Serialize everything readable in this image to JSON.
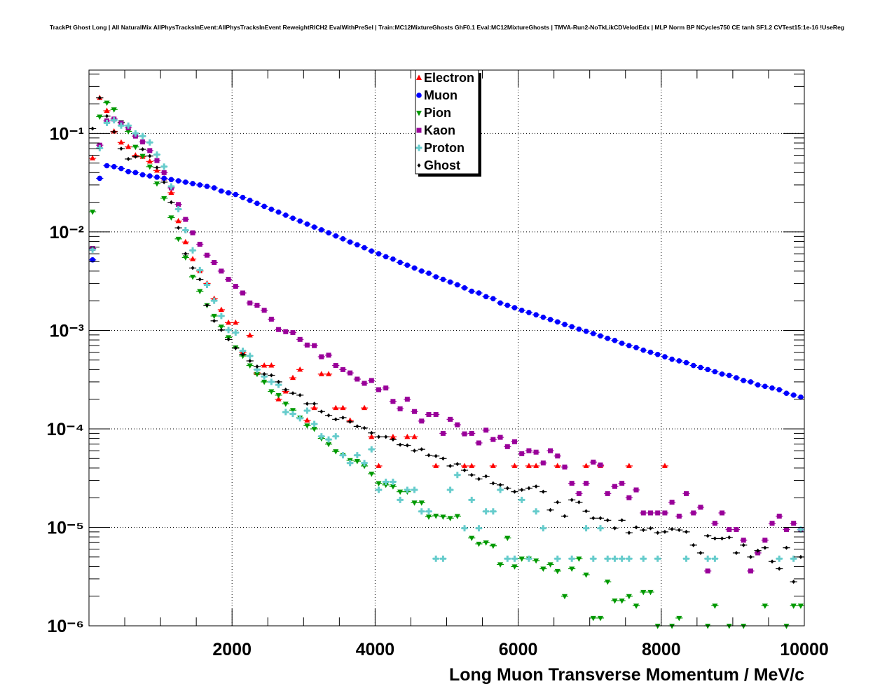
{
  "chart_data": {
    "type": "scatter",
    "title": "TrackPt Ghost Long | All NaturalMix AllPhysTracksInEvent:AllPhysTracksInEvent ReweightRICH2 EvalWithPreSel | Train:MC12MixtureGhosts GhF0.1 Eval:MC12MixtureGhosts | TMVA-Run2-NoTkLikCDVelodEdx | MLP Norm BP NCycles750 CE tanh SF1.2 CVTest15:1e-16 !UseReg",
    "xlabel": "Long Muon Transverse Momentum / MeV/c",
    "ylabel": "",
    "xlim": [
      0,
      10000
    ],
    "ylim": [
      1e-06,
      0.44
    ],
    "yscale": "log",
    "grid": true,
    "legend_position": "top-center",
    "bin_width": 100,
    "xticks": [
      2000,
      4000,
      6000,
      8000,
      10000
    ],
    "xtick_labels": [
      "2000",
      "4000",
      "6000",
      "8000",
      "10000"
    ],
    "yticks": [
      1e-06,
      1e-05,
      0.0001,
      0.001,
      0.01,
      0.1
    ],
    "ytick_labels": [
      "10⁻⁶",
      "10⁻⁵",
      "10⁻⁴",
      "10⁻³",
      "10⁻²",
      "10⁻¹"
    ],
    "series": [
      {
        "name": "Electron",
        "color": "#ff0000",
        "marker": "triangle-up",
        "values": [
          0.056,
          0.23,
          0.17,
          0.105,
          0.081,
          0.073,
          0.06,
          0.058,
          0.052,
          0.042,
          0.035,
          0.025,
          0.0129,
          0.0079,
          0.0053,
          0.004,
          0.003,
          0.0021,
          0.00162,
          0.0012,
          0.0012,
          0.0006,
          0.00089,
          0.00037,
          0.00044,
          0.00044,
          0.0002,
          0.00024,
          0.00033,
          0.0004,
          0.000122,
          0.000163,
          0.00036,
          0.00036,
          0.000163,
          0.000163,
          0.000122,
          null,
          0.000163,
          8.3e-05,
          4.2e-05,
          null,
          8.3e-05,
          null,
          8.3e-05,
          8.3e-05,
          null,
          null,
          4.2e-05,
          null,
          null,
          null,
          4.2e-05,
          4.2e-05,
          null,
          null,
          4.2e-05,
          null,
          null,
          4.2e-05,
          null,
          4.2e-05,
          4.2e-05,
          null,
          null,
          4.2e-05,
          null,
          null,
          null,
          4.2e-05,
          null,
          4.2e-05,
          null,
          null,
          null,
          4.2e-05,
          null,
          null,
          null,
          null,
          4.2e-05,
          null,
          null,
          null,
          null,
          null,
          null,
          null,
          null,
          null,
          null,
          null,
          null,
          null,
          null,
          null,
          null,
          null,
          null,
          null
        ]
      },
      {
        "name": "Muon",
        "color": "#0000ff",
        "marker": "circle",
        "values": [
          0.0052,
          0.035,
          0.047,
          0.046,
          0.044,
          0.041,
          0.04,
          0.038,
          0.037,
          0.036,
          0.035,
          0.034,
          0.033,
          0.032,
          0.031,
          0.03,
          0.029,
          0.028,
          0.026,
          0.025,
          0.024,
          0.0224,
          0.0209,
          0.0195,
          0.0182,
          0.017,
          0.0159,
          0.0148,
          0.0138,
          0.0129,
          0.012,
          0.0112,
          0.0105,
          0.0098,
          0.0091,
          0.0085,
          0.0079,
          0.0074,
          0.0069,
          0.0064,
          0.006,
          0.0056,
          0.0053,
          0.0049,
          0.0046,
          0.0043,
          0.004,
          0.0038,
          0.0035,
          0.0033,
          0.0031,
          0.0029,
          0.0027,
          0.0025,
          0.0024,
          0.0022,
          0.0021,
          0.0019,
          0.0018,
          0.0017,
          0.0016,
          0.00152,
          0.00144,
          0.00136,
          0.00129,
          0.00122,
          0.00115,
          0.00109,
          0.00103,
          0.00098,
          0.00093,
          0.00088,
          0.00083,
          0.00079,
          0.00074,
          0.0007,
          0.00067,
          0.00063,
          0.0006,
          0.00057,
          0.00054,
          0.00051,
          0.00049,
          0.00047,
          0.00044,
          0.00042,
          0.0004,
          0.00038,
          0.00036,
          0.00035,
          0.00033,
          0.00031,
          0.0003,
          0.00028,
          0.00027,
          0.00026,
          0.00025,
          0.00023,
          0.00022,
          0.00021
        ]
      },
      {
        "name": "Pion",
        "color": "#009900",
        "marker": "triangle-down",
        "values": [
          0.016,
          0.148,
          0.205,
          0.175,
          0.13,
          0.105,
          0.073,
          0.059,
          0.046,
          0.031,
          0.022,
          0.014,
          0.0085,
          0.0055,
          0.0035,
          0.0025,
          0.0018,
          0.0014,
          0.00109,
          0.00085,
          0.00067,
          0.00055,
          0.00044,
          0.00036,
          0.0003,
          0.00024,
          0.00022,
          0.00018,
          0.000155,
          0.00013,
          0.000108,
          0.0001,
          8e-05,
          7e-05,
          5.9e-05,
          5.4e-05,
          4.8e-05,
          4.7e-05,
          4.2e-05,
          3.5e-05,
          2.8e-05,
          2.7e-05,
          2.6e-05,
          2.3e-05,
          2.3e-05,
          1.78e-05,
          1.78e-05,
          1.28e-05,
          1.31e-05,
          1.28e-05,
          1.24e-05,
          1.3e-05,
          null,
          7.8e-06,
          6.8e-06,
          7e-06,
          6.5e-06,
          4.2e-06,
          7.8e-06,
          4e-06,
          4.8e-06,
          4.8e-06,
          4.6e-06,
          3.8e-06,
          4.2e-06,
          3.6e-06,
          2e-06,
          3.8e-06,
          4.8e-06,
          3.3e-06,
          1.2e-06,
          1.2e-06,
          2.8e-06,
          1.8e-06,
          1.8e-06,
          2e-06,
          1.6e-06,
          2.2e-06,
          2.2e-06,
          1e-06,
          null,
          1e-06,
          1.2e-06,
          null,
          null,
          null,
          1e-06,
          1.6e-06,
          null,
          1e-06,
          null,
          1e-06,
          null,
          null,
          1.6e-06,
          null,
          null,
          1e-06,
          1.6e-06,
          1.6e-06
        ]
      },
      {
        "name": "Kaon",
        "color": "#990099",
        "marker": "square",
        "values": [
          0.0068,
          0.076,
          0.134,
          0.14,
          0.128,
          0.114,
          0.094,
          0.082,
          0.067,
          0.053,
          0.04,
          0.028,
          0.019,
          0.0134,
          0.0098,
          0.0075,
          0.0058,
          0.0049,
          0.004,
          0.0033,
          0.0028,
          0.0024,
          0.0019,
          0.0018,
          0.0016,
          0.0013,
          0.00102,
          0.00097,
          0.00095,
          0.00081,
          0.00071,
          0.0007,
          0.00054,
          0.00056,
          0.00044,
          0.0004,
          0.00037,
          0.00032,
          0.00029,
          0.00031,
          0.00025,
          0.00026,
          0.00019,
          0.00016,
          0.0002,
          0.00015,
          0.00012,
          0.00014,
          0.00014,
          9e-05,
          0.000125,
          0.00011,
          8.9e-05,
          9e-05,
          7.2e-05,
          9.7e-05,
          7.8e-05,
          8.2e-05,
          6.6e-05,
          7.4e-05,
          5.6e-05,
          6e-05,
          5.8e-05,
          4.5e-05,
          6e-05,
          5.3e-05,
          4.1e-05,
          2.8e-05,
          2.2e-05,
          2.8e-05,
          4.6e-05,
          4.3e-05,
          2.2e-05,
          2.6e-05,
          2.8e-05,
          2e-05,
          2.4e-05,
          1.4e-05,
          1.4e-05,
          1.4e-05,
          1.4e-05,
          1.8e-05,
          1.3e-05,
          2.2e-05,
          1.4e-05,
          1.6e-05,
          3.6e-06,
          1.1e-05,
          1.4e-05,
          9.5e-06,
          9.5e-06,
          7.4e-06,
          3.6e-06,
          5.5e-06,
          7.4e-06,
          1.1e-05,
          1.3e-05,
          9.5e-06,
          1.1e-05,
          9.5e-06
        ]
      },
      {
        "name": "Proton",
        "color": "#66cccc",
        "marker": "cross",
        "values": [
          0.0066,
          0.071,
          0.128,
          0.136,
          0.12,
          0.12,
          0.1,
          0.094,
          0.081,
          0.061,
          0.046,
          0.029,
          0.017,
          0.0104,
          0.0065,
          0.0041,
          0.0029,
          0.002,
          0.0014,
          0.00101,
          0.00095,
          0.00062,
          0.00055,
          0.0004,
          0.00034,
          0.0003,
          0.00028,
          0.000148,
          0.000142,
          0.000128,
          0.000153,
          0.000112,
          8.4e-05,
          7.8e-05,
          8.4e-05,
          5.4e-05,
          4.5e-05,
          5.4e-05,
          4.5e-05,
          6.2e-05,
          2.4e-05,
          2.9e-05,
          2.9e-05,
          1.9e-05,
          2.4e-05,
          2.4e-05,
          1.45e-05,
          1.45e-05,
          4.8e-06,
          4.8e-06,
          2.4e-05,
          3.4e-05,
          9.8e-06,
          1.9e-05,
          9.8e-06,
          1.45e-05,
          1.45e-05,
          2.4e-05,
          4.8e-06,
          4.8e-06,
          1.9e-05,
          4.8e-06,
          1.45e-05,
          9.8e-06,
          null,
          4.8e-06,
          null,
          4.8e-06,
          null,
          9.8e-06,
          4.8e-06,
          9.8e-06,
          4.8e-06,
          4.8e-06,
          4.8e-06,
          4.8e-06,
          null,
          4.8e-06,
          null,
          4.8e-06,
          null,
          null,
          null,
          4.8e-06,
          null,
          null,
          4.8e-06,
          4.8e-06,
          null,
          null,
          null,
          null,
          null,
          null,
          null,
          null,
          4.8e-06,
          null,
          4.8e-06,
          9.5e-06
        ]
      },
      {
        "name": "Ghost",
        "color": "#000000",
        "marker": "diamond",
        "values": [
          0.112,
          0.23,
          0.15,
          0.104,
          0.07,
          0.055,
          0.058,
          0.069,
          0.059,
          0.045,
          0.032,
          0.02,
          0.011,
          0.006,
          0.0043,
          0.0033,
          0.0018,
          0.00125,
          0.00101,
          0.00081,
          0.00066,
          0.00057,
          0.00049,
          0.00043,
          0.00036,
          0.00035,
          0.0003,
          0.00025,
          0.00023,
          0.00022,
          0.00018,
          0.00018,
          0.00015,
          0.000137,
          0.000125,
          0.00013,
          0.000118,
          0.000106,
          0.000102,
          9.1e-05,
          8.3e-05,
          8.3e-05,
          7.8e-05,
          6.9e-05,
          6.8e-05,
          6e-05,
          6.2e-05,
          5.4e-05,
          5.3e-05,
          5e-05,
          4.2e-05,
          4.4e-05,
          3.8e-05,
          3.4e-05,
          3.1e-05,
          3.3e-05,
          2.8e-05,
          2.7e-05,
          2.5e-05,
          2.3e-05,
          2.4e-05,
          2.5e-05,
          2.6e-05,
          2.3e-05,
          1.5e-05,
          1.8e-05,
          1.3e-05,
          1.9e-05,
          1.8e-05,
          1.46e-05,
          1.24e-05,
          1.24e-05,
          1.18e-05,
          9.8e-06,
          1.18e-05,
          8.8e-06,
          1e-05,
          9.4e-06,
          9.8e-06,
          8.8e-06,
          9e-06,
          9.6e-06,
          9.4e-06,
          9e-06,
          6.6e-06,
          5.5e-06,
          8.2e-06,
          7.7e-06,
          7.7e-06,
          7.9e-06,
          5.5e-06,
          6.6e-06,
          5e-06,
          5.8e-06,
          6.2e-06,
          4.5e-06,
          3.8e-06,
          6.2e-06,
          2.8e-06,
          5e-06
        ]
      }
    ]
  }
}
